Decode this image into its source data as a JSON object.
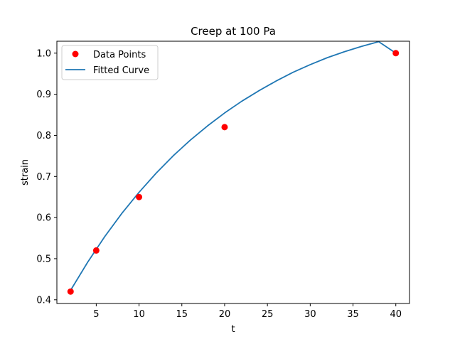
{
  "chart_data": {
    "type": "scatter",
    "title": "Creep at 100 Pa",
    "xlabel": "t",
    "ylabel": "strain",
    "xlim": [
      0.4,
      41.6
    ],
    "ylim": [
      0.391,
      1.029
    ],
    "xticks": [
      5,
      10,
      15,
      20,
      25,
      30,
      35,
      40
    ],
    "yticks": [
      0.4,
      0.5,
      0.6,
      0.7,
      0.8,
      0.9,
      1.0
    ],
    "ytick_labels": [
      "0.4",
      "0.5",
      "0.6",
      "0.7",
      "0.8",
      "0.9",
      "1.0"
    ],
    "grid": false,
    "legend_position": "upper-left",
    "series": [
      {
        "name": "Data Points",
        "kind": "scatter",
        "color": "#ff0000",
        "x": [
          2,
          5,
          10,
          20,
          40
        ],
        "y": [
          0.42,
          0.52,
          0.65,
          0.82,
          1.0
        ]
      },
      {
        "name": "Fitted Curve",
        "kind": "line",
        "color": "#1f77b4",
        "x": [
          2,
          4,
          6,
          8,
          10,
          12,
          14,
          16,
          18,
          20,
          22,
          24,
          26,
          28,
          30,
          32,
          34,
          36,
          38,
          40
        ],
        "y": [
          0.423,
          0.4915,
          0.554,
          0.6105,
          0.6615,
          0.708,
          0.7505,
          0.7885,
          0.823,
          0.8545,
          0.883,
          0.9085,
          0.932,
          0.9535,
          0.972,
          0.989,
          1.0035,
          1.0165,
          1.028,
          1.0
        ]
      }
    ]
  }
}
